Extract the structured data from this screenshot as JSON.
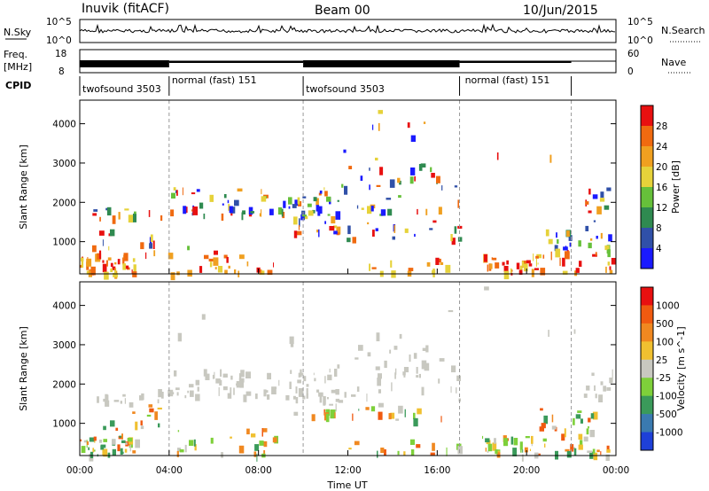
{
  "header": {
    "site": "Inuvik (fitACF)",
    "beam": "Beam 00",
    "date": "10/Jun/2015"
  },
  "strip_labels": {
    "nsky": "N.Sky",
    "freq_line1": "Freq.",
    "freq_line2": "[MHz]",
    "cpid": "CPID",
    "nsearch": "N.Search",
    "nave": "Nave"
  },
  "strip_ticks": {
    "nsky_left": [
      "10^5",
      "10^0"
    ],
    "nsky_right": [
      "10^5",
      "10^0"
    ],
    "freq_left": [
      "18",
      "8"
    ],
    "nave_right": [
      "60",
      "0"
    ]
  },
  "cpid_segments": [
    {
      "label": "twofsound 3503",
      "start_h": 0,
      "end_h": 4
    },
    {
      "label": "normal (fast) 151",
      "start_h": 4,
      "end_h": 10
    },
    {
      "label": "twofsound 3503",
      "start_h": 10,
      "end_h": 17
    },
    {
      "label": "normal (fast) 151",
      "start_h": 17,
      "end_h": 22
    }
  ],
  "chart_data": [
    {
      "type": "heatmap",
      "name": "power",
      "ylabel": "Slant Range [km]",
      "yticks": [
        "1000",
        "2000",
        "3000",
        "4000"
      ],
      "ylim": [
        180,
        4600
      ],
      "colorbar_label": "Power [dB]",
      "colorbar_ticks": [
        "4",
        "8",
        "12",
        "16",
        "20",
        "24",
        "28"
      ],
      "colorbar_colors": [
        "#1a1aff",
        "#3050a8",
        "#2f8a50",
        "#66c03a",
        "#e6d23a",
        "#f0a020",
        "#f06a10",
        "#e81010"
      ],
      "xlim": [
        0,
        24
      ]
    },
    {
      "type": "heatmap",
      "name": "velocity",
      "ylabel": "Slant Range [km]",
      "yticks": [
        "1000",
        "2000",
        "3000",
        "4000"
      ],
      "ylim": [
        180,
        4600
      ],
      "colorbar_label": "Velocity [m s^-1]",
      "colorbar_ticks": [
        "1000",
        "500",
        "100",
        "25",
        "-25",
        "-100",
        "-500",
        "-1000"
      ],
      "colorbar_colors": [
        "#1e40d8",
        "#3a7ab0",
        "#3a9a5a",
        "#7ed03a",
        "#c8c8c0",
        "#f0c030",
        "#f08820",
        "#f05a10",
        "#e81010"
      ],
      "xlim": [
        0,
        24
      ]
    }
  ],
  "xaxis": {
    "label": "Time UT",
    "ticks": [
      "00:00",
      "04:00",
      "08:00",
      "12:00",
      "16:00",
      "20:00",
      "00:00"
    ]
  }
}
